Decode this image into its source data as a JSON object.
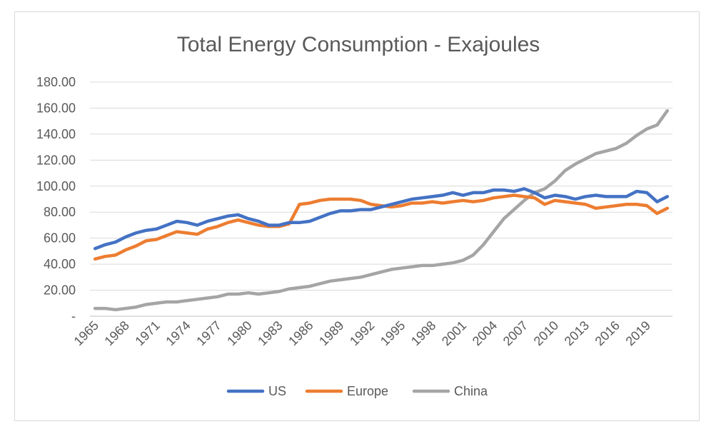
{
  "chart_data": {
    "type": "line",
    "title": "Total Energy Consumption - Exajoules",
    "xlabel": "",
    "ylabel": "",
    "ylim": [
      0,
      180
    ],
    "yticks": [
      "-",
      "20.00",
      "40.00",
      "60.00",
      "80.00",
      "100.00",
      "120.00",
      "140.00",
      "160.00",
      "180.00"
    ],
    "x_tick_labels": [
      "1965",
      "1968",
      "1971",
      "1974",
      "1977",
      "1980",
      "1983",
      "1986",
      "1989",
      "1992",
      "1995",
      "1998",
      "2001",
      "2004",
      "2007",
      "2010",
      "2013",
      "2016",
      "2019"
    ],
    "grid": "horizontal",
    "legend_position": "bottom",
    "x": [
      1965,
      1966,
      1967,
      1968,
      1969,
      1970,
      1971,
      1972,
      1973,
      1974,
      1975,
      1976,
      1977,
      1978,
      1979,
      1980,
      1981,
      1982,
      1983,
      1984,
      1985,
      1986,
      1987,
      1988,
      1989,
      1990,
      1991,
      1992,
      1993,
      1994,
      1995,
      1996,
      1997,
      1998,
      1999,
      2000,
      2001,
      2002,
      2003,
      2004,
      2005,
      2006,
      2007,
      2008,
      2009,
      2010,
      2011,
      2012,
      2013,
      2014,
      2015,
      2016,
      2017,
      2018,
      2019,
      2020,
      2021
    ],
    "series": [
      {
        "name": "US",
        "color": "#4472c4",
        "values": [
          52,
          55,
          57,
          61,
          64,
          66,
          67,
          70,
          73,
          72,
          70,
          73,
          75,
          77,
          78,
          75,
          73,
          70,
          70,
          72,
          72,
          73,
          76,
          79,
          81,
          81,
          82,
          82,
          84,
          86,
          88,
          90,
          91,
          92,
          93,
          95,
          93,
          95,
          95,
          97,
          97,
          96,
          98,
          95,
          91,
          93,
          92,
          90,
          92,
          93,
          92,
          92,
          92,
          96,
          95,
          88,
          92
        ]
      },
      {
        "name": "Europe",
        "color": "#ed7d31",
        "values": [
          44,
          46,
          47,
          51,
          54,
          58,
          59,
          62,
          65,
          64,
          63,
          67,
          69,
          72,
          74,
          72,
          70,
          69,
          69,
          71,
          86,
          87,
          89,
          90,
          90,
          90,
          89,
          86,
          85,
          84,
          85,
          87,
          87,
          88,
          87,
          88,
          89,
          88,
          89,
          91,
          92,
          93,
          92,
          91,
          86,
          89,
          88,
          87,
          86,
          83,
          84,
          85,
          86,
          86,
          85,
          79,
          83
        ]
      },
      {
        "name": "China",
        "color": "#a5a5a5",
        "values": [
          6,
          6,
          5,
          6,
          7,
          9,
          10,
          11,
          11,
          12,
          13,
          14,
          15,
          17,
          17,
          18,
          17,
          18,
          19,
          21,
          22,
          23,
          25,
          27,
          28,
          29,
          30,
          32,
          34,
          36,
          37,
          38,
          39,
          39,
          40,
          41,
          43,
          47,
          55,
          65,
          75,
          82,
          89,
          95,
          98,
          104,
          112,
          117,
          121,
          125,
          127,
          129,
          133,
          139,
          144,
          147,
          158
        ]
      }
    ]
  }
}
